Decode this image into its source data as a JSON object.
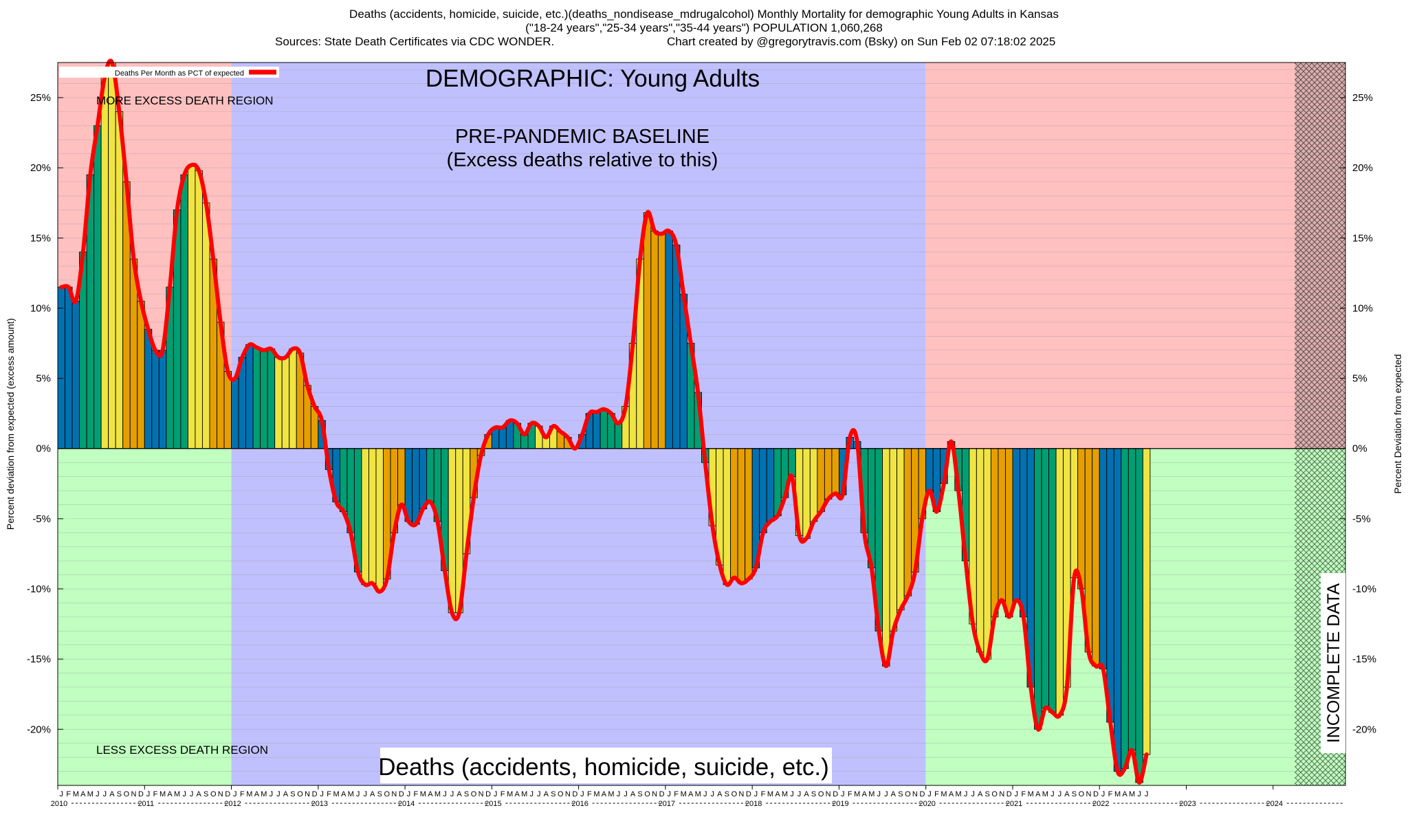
{
  "header": {
    "line1": "Deaths (accidents, homicide, suicide, etc.)(deaths_nondisease_mdrugalcohol) Monthly Mortality for demographic Young Adults in Kansas",
    "line2": "(\"18-24 years\",\"25-34 years\",\"35-44 years\") POPULATION 1,060,268",
    "line3_left": "Sources: State Death Certificates via CDC WONDER.",
    "line3_right": "Chart created by @gregorytravis.com (Bsky) on Sun Feb 02 07:18:02 2025"
  },
  "colors": {
    "excess_region": "#ffc0c0",
    "baseline_region": "#c0c0ff",
    "less_region": "#c0ffc0",
    "curve": "#ff0000",
    "bar_cycle": [
      "#0072b2",
      "#009e73",
      "#f0e442",
      "#e69f00"
    ]
  },
  "chart_data": {
    "type": "bar",
    "title": "DEMOGRAPHIC: Young Adults",
    "bottom_title": "Deaths (accidents, homicide, suicide, etc.)",
    "ylabel_left": "Percent deviation from expected (excess amount)",
    "ylabel_right": "Percent Deviation from expected",
    "legend": "Deaths Per Month as PCT of expected",
    "legend_position": "top-left",
    "ylim": [
      -24,
      27.5
    ],
    "yticks": [
      25,
      20,
      15,
      10,
      5,
      0,
      -5,
      -10,
      -15,
      -20
    ],
    "ytick_labels": [
      "25%",
      "20%",
      "15%",
      "10%",
      "5%",
      "0%",
      "-5%",
      "-10%",
      "-15%",
      "-20%"
    ],
    "month_letters": [
      "J",
      "F",
      "M",
      "A",
      "M",
      "J",
      "J",
      "A",
      "S",
      "O",
      "N",
      "D"
    ],
    "years": [
      "2010",
      "2011",
      "2012",
      "2013",
      "2014",
      "2015",
      "2016",
      "2017",
      "2018",
      "2019",
      "2020",
      "2021",
      "2022",
      "2023",
      "2024"
    ],
    "start": "2010-01",
    "end": "2024-10",
    "region_labels": {
      "more": "MORE EXCESS DEATH REGION",
      "less": "LESS EXCESS DEATH REGION",
      "baseline_line1": "PRE-PANDEMIC BASELINE",
      "baseline_line2": "(Excess deaths relative to this)",
      "incomplete": "INCOMPLETE DATA"
    },
    "regions": [
      {
        "name": "pre-baseline",
        "from": "2010-01",
        "to": "2011-12"
      },
      {
        "name": "pre-pandemic-baseline",
        "from": "2012-01",
        "to": "2019-12"
      },
      {
        "name": "post-baseline",
        "from": "2020-01",
        "to": "2024-03"
      },
      {
        "name": "incomplete",
        "from": "2024-04",
        "to": "2024-10"
      }
    ],
    "series": [
      {
        "name": "Deaths Per Month as PCT of expected",
        "values": [
          11.5,
          11.5,
          10.5,
          14,
          19.5,
          23,
          26.5,
          27.5,
          24,
          19,
          13.5,
          10.5,
          8.5,
          7.0,
          7.0,
          11.5,
          17,
          19.5,
          20.2,
          19.8,
          17.5,
          13.5,
          9.0,
          5.5,
          5.0,
          6.5,
          7.4,
          7.2,
          7.0,
          7.1,
          6.5,
          6.5,
          7.1,
          6.8,
          4.5,
          3.0,
          2.0,
          -1.5,
          -3.8,
          -4.5,
          -6.0,
          -8.8,
          -9.7,
          -9.6,
          -10.2,
          -9.3,
          -6.0,
          -4.0,
          -5.2,
          -5.4,
          -4.3,
          -3.8,
          -5.2,
          -8.7,
          -11.7,
          -11.7,
          -7.5,
          -3.5,
          -0.5,
          1.0,
          1.5,
          1.5,
          2.0,
          1.8,
          1.0,
          1.8,
          1.6,
          0.8,
          1.6,
          1.2,
          0.8,
          0.0,
          1.0,
          2.5,
          2.6,
          2.8,
          2.5,
          1.8,
          3.0,
          7.5,
          13.5,
          16.8,
          15.5,
          15.3,
          15.5,
          14.5,
          11.0,
          7.5,
          4.0,
          -1.0,
          -5.5,
          -8.3,
          -9.7,
          -9.2,
          -9.6,
          -9.3,
          -8.5,
          -6.0,
          -5.2,
          -4.8,
          -3.5,
          -2.0,
          -6.2,
          -6.4,
          -5.2,
          -4.5,
          -3.6,
          -3.2,
          -3.3,
          0.8,
          0.5,
          -6.0,
          -8.5,
          -13.0,
          -15.5,
          -13.0,
          -11.5,
          -10.5,
          -8.8,
          -5.0,
          -3.0,
          -4.5,
          -2.5,
          0.5,
          -3.0,
          -8.0,
          -12.5,
          -14.5,
          -15.0,
          -12.0,
          -10.8,
          -12.0,
          -10.8,
          -12.0,
          -17.0,
          -20.0,
          -18.5,
          -18.8,
          -19.0,
          -17.0,
          -9.2,
          -10.0,
          -14.5,
          -15.5,
          -15.7,
          -19.5,
          -23.0,
          -22.8,
          -21.5,
          -23.8,
          -21.8
        ]
      }
    ]
  }
}
